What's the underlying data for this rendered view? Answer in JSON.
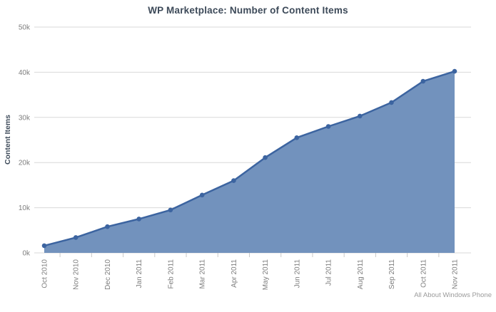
{
  "title": "WP Marketplace: Number of Content Items",
  "watermark": "All About Windows Phone",
  "chart_data": {
    "type": "area",
    "title": "WP Marketplace: Number of Content Items",
    "xlabel": "",
    "ylabel": "Content Items",
    "categories": [
      "Oct 2010",
      "Nov 2010",
      "Dec 2010",
      "Jan 2011",
      "Feb 2011",
      "Mar 2011",
      "Apr 2011",
      "May 2011",
      "Jun 2011",
      "Jul 2011",
      "Aug 2011",
      "Sep 2011",
      "Oct 2011",
      "Nov 2011"
    ],
    "values": [
      1600,
      3400,
      5800,
      7500,
      9500,
      12800,
      16000,
      21100,
      25500,
      28000,
      30300,
      33300,
      38000,
      40200
    ],
    "ylim": [
      0,
      50000
    ],
    "yticks": [
      0,
      10000,
      20000,
      30000,
      40000,
      50000
    ],
    "ytick_labels": [
      "0k",
      "10k",
      "20k",
      "30k",
      "40k",
      "50k"
    ],
    "grid": "horizontal",
    "legend": "none",
    "colors": {
      "area_fill": "#7292bd",
      "line": "#3c64a0",
      "marker": "#3c64a0",
      "gridline": "#d9d9d9",
      "tick_mark": "#c9c9c9",
      "tick_text": "#7e7e7e",
      "title_text": "#3d4a59",
      "axis_title_text": "#3d4a59",
      "watermark_text": "#9b9b9b"
    }
  }
}
